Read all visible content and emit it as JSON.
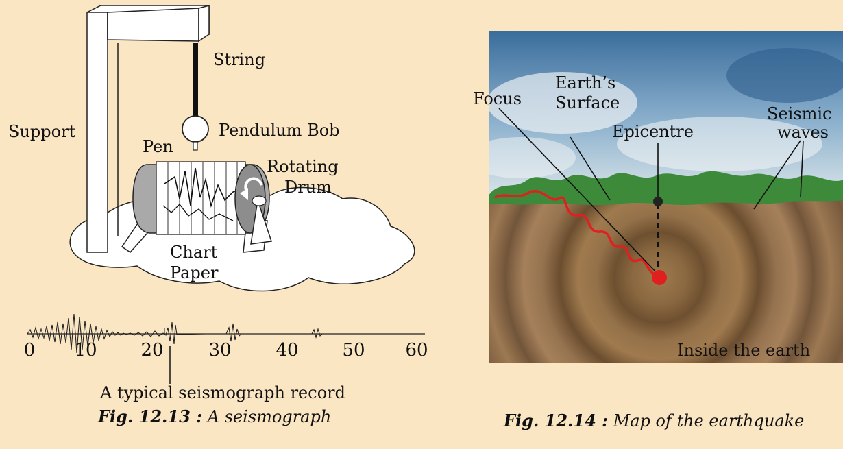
{
  "seismograph": {
    "labels": {
      "string": "String",
      "support": "Support",
      "pendulum_bob": "Pendulum Bob",
      "pen": "Pen",
      "rotating": "Rotating",
      "drum": "Drum",
      "chart": "Chart",
      "paper": "Paper"
    },
    "record": {
      "ticks": [
        "0",
        "10",
        "20",
        "30",
        "40",
        "50",
        "60"
      ],
      "caption": "A typical seismograph record"
    },
    "figure": {
      "number": "Fig. 12.13 :",
      "title": "A seismograph"
    }
  },
  "earthquake_map": {
    "labels": {
      "focus": "Focus",
      "earths": "Earth’s",
      "surface": "Surface",
      "epicentre": "Epicentre",
      "seismic": "Seismic",
      "waves": "waves",
      "inside": "Inside the earth"
    },
    "figure": {
      "number": "Fig. 12.14 :",
      "title": "Map of the earthquake"
    }
  },
  "colors": {
    "background": "#fbe6c4",
    "soil": "#8b6a45",
    "wave": "#e0201e",
    "sky": "#5c88b2"
  }
}
